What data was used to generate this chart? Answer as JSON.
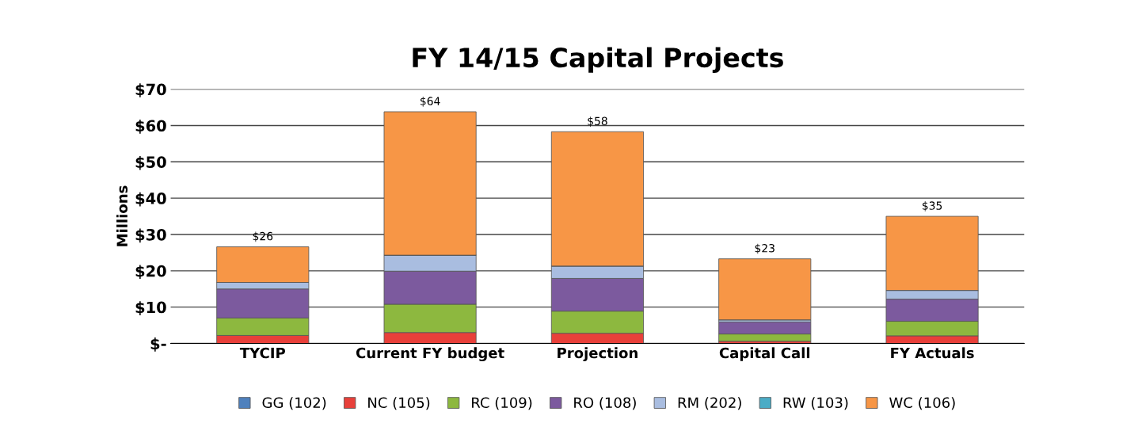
{
  "chart_data": {
    "type": "bar",
    "title": "FY 14/15 Capital Projects",
    "ylabel": "Millions",
    "stacked": true,
    "categories": [
      "TYCIP",
      "Current FY budget",
      "Projection",
      "Capital Call",
      "FY Actuals"
    ],
    "series": [
      {
        "name": "GG (102)",
        "color": "#4f81bd",
        "values": [
          0,
          0,
          0,
          0,
          0
        ]
      },
      {
        "name": "NC (105)",
        "color": "#e8403a",
        "values": [
          2.2,
          3.0,
          2.8,
          0.6,
          2.1
        ]
      },
      {
        "name": "RC (109)",
        "color": "#8db83f",
        "values": [
          4.8,
          7.8,
          6.1,
          2.0,
          4.0
        ]
      },
      {
        "name": "RO (108)",
        "color": "#7c5a9e",
        "values": [
          8.0,
          9.1,
          9.0,
          3.3,
          6.1
        ]
      },
      {
        "name": "RM (202)",
        "color": "#a9bde0",
        "values": [
          1.8,
          4.4,
          3.4,
          0.6,
          2.4
        ]
      },
      {
        "name": "RW (103)",
        "color": "#4bacc6",
        "values": [
          0,
          0,
          0,
          0,
          0
        ]
      },
      {
        "name": "WC (106)",
        "color": "#f79646",
        "values": [
          9.8,
          39.5,
          37.0,
          16.8,
          20.4
        ]
      }
    ],
    "totals": [
      "$26",
      "$64",
      "$58",
      "$23",
      "$35"
    ],
    "ylim": [
      0,
      70
    ],
    "yticks": [
      {
        "value": 0,
        "label": "$-"
      },
      {
        "value": 10,
        "label": "$10"
      },
      {
        "value": 20,
        "label": "$20"
      },
      {
        "value": 30,
        "label": "$30"
      },
      {
        "value": 40,
        "label": "$40"
      },
      {
        "value": 50,
        "label": "$50"
      },
      {
        "value": 60,
        "label": "$60"
      },
      {
        "value": 70,
        "label": "$70"
      }
    ],
    "grid": "y",
    "legend": "bottom"
  }
}
